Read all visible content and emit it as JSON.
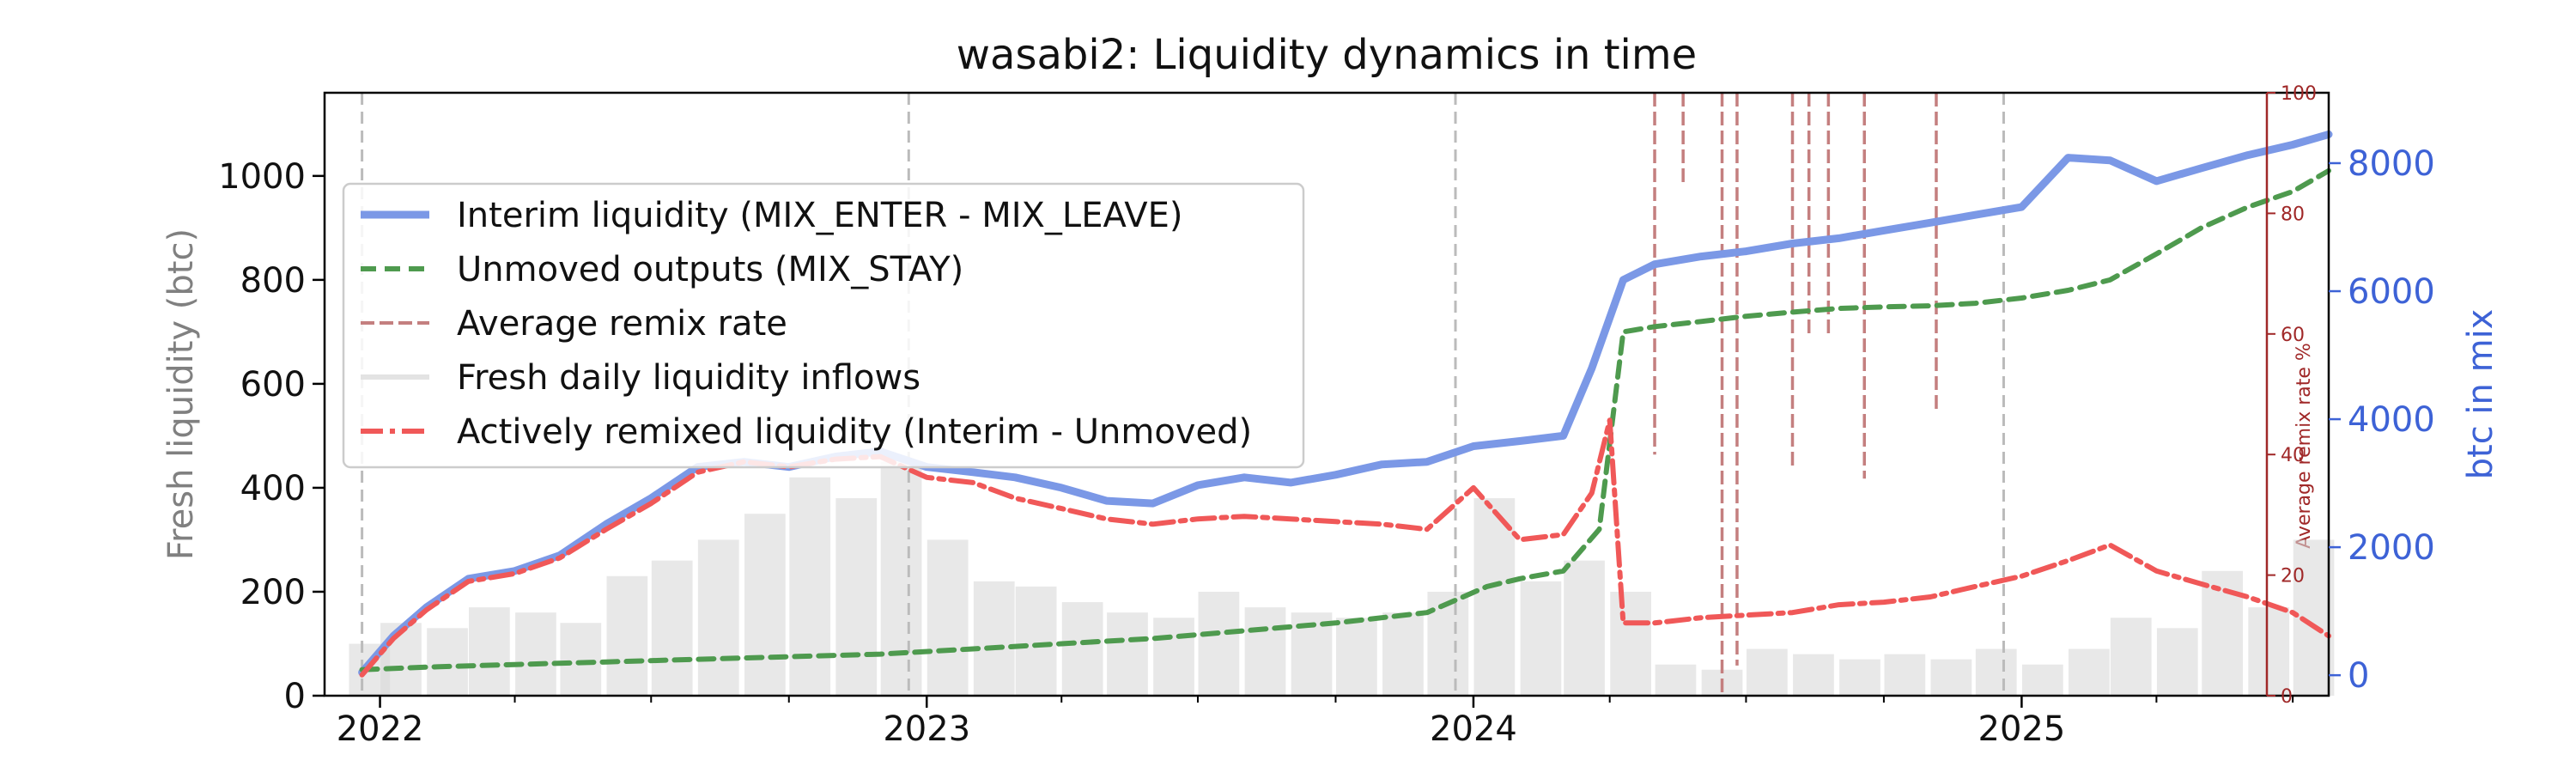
{
  "chart_data": {
    "type": "line",
    "title": "wasabi2: Liquidity dynamics in time",
    "ylabel_left": "Fresh liquidity (btc)",
    "ylabel_right_inner": "Average remix rate %",
    "ylabel_right_outer": "btc in mix",
    "xlim": [
      "2021-11-25",
      "2025-07-25"
    ],
    "ylim_left": [
      0,
      1160
    ],
    "ylim_right_inner": [
      0,
      100
    ],
    "ylim_right_outer": [
      -320,
      9100
    ],
    "x_ticks": [
      {
        "date": "2022-01-01",
        "label": "2022"
      },
      {
        "date": "2023-01-01",
        "label": "2023"
      },
      {
        "date": "2024-01-01",
        "label": "2024"
      },
      {
        "date": "2025-01-01",
        "label": "2025"
      }
    ],
    "x_minor_ticks": [
      "2022-04-01",
      "2022-07-01",
      "2022-10-01",
      "2023-04-01",
      "2023-07-01",
      "2023-10-01",
      "2024-04-01",
      "2024-07-01",
      "2024-10-01",
      "2025-04-01",
      "2025-07-01"
    ],
    "y_ticks_left": [
      0,
      200,
      400,
      600,
      800,
      1000
    ],
    "y_ticks_right_inner": [
      0,
      20,
      40,
      60,
      80,
      100
    ],
    "y_ticks_right_outer": [
      0,
      2000,
      4000,
      6000,
      8000
    ],
    "year_markers": [
      "2021-12-20",
      "2022-12-20",
      "2023-12-20",
      "2024-12-20"
    ],
    "legend": {
      "placement": "upper-left",
      "entries": [
        {
          "label": "Interim liquidity (MIX_ENTER - MIX_LEAVE)",
          "style": "interim"
        },
        {
          "label": "Unmoved outputs (MIX_STAY)",
          "style": "unmoved"
        },
        {
          "label": "Average remix rate",
          "style": "remix"
        },
        {
          "label": "Fresh daily liquidity inflows",
          "style": "fresh"
        },
        {
          "label": "Actively remixed liquidity (Interim - Unmoved)",
          "style": "active"
        }
      ]
    },
    "colors": {
      "interim": "#7b98e6",
      "unmoved": "#4e9a4e",
      "remix": "#c47f7f",
      "fresh": "#d9d9d9",
      "active": "#f05858",
      "right_outer_axis": "#3d62d6",
      "right_inner_axis": "#a02828",
      "left_label": "#808080"
    },
    "series": [
      {
        "name": "Interim liquidity (MIX_ENTER - MIX_LEAVE)",
        "axis": "left",
        "x": [
          "2021-12-20",
          "2022-01-10",
          "2022-02-01",
          "2022-03-01",
          "2022-04-01",
          "2022-05-01",
          "2022-06-01",
          "2022-07-01",
          "2022-08-01",
          "2022-09-01",
          "2022-10-01",
          "2022-11-01",
          "2022-12-01",
          "2023-01-01",
          "2023-02-01",
          "2023-03-01",
          "2023-04-01",
          "2023-05-01",
          "2023-06-01",
          "2023-07-01",
          "2023-08-01",
          "2023-09-01",
          "2023-10-01",
          "2023-11-01",
          "2023-12-01",
          "2024-01-01",
          "2024-02-01",
          "2024-03-01",
          "2024-03-20",
          "2024-04-10",
          "2024-05-01",
          "2024-06-01",
          "2024-07-01",
          "2024-08-01",
          "2024-09-01",
          "2024-10-01",
          "2024-11-01",
          "2024-12-01",
          "2025-01-01",
          "2025-02-01",
          "2025-03-01",
          "2025-04-01",
          "2025-05-01",
          "2025-06-01",
          "2025-07-01",
          "2025-07-25"
        ],
        "y": [
          45,
          115,
          170,
          225,
          240,
          270,
          330,
          380,
          440,
          450,
          440,
          460,
          470,
          440,
          430,
          420,
          400,
          375,
          370,
          405,
          420,
          410,
          425,
          445,
          450,
          480,
          490,
          500,
          630,
          800,
          830,
          845,
          855,
          870,
          880,
          895,
          910,
          925,
          940,
          1035,
          1030,
          990,
          1015,
          1040,
          1060,
          1080
        ]
      },
      {
        "name": "Unmoved outputs (MIX_STAY)",
        "axis": "left",
        "x": [
          "2021-12-20",
          "2022-02-01",
          "2022-04-01",
          "2022-06-01",
          "2022-08-01",
          "2022-10-01",
          "2022-12-01",
          "2023-02-01",
          "2023-04-01",
          "2023-06-01",
          "2023-08-01",
          "2023-10-01",
          "2023-12-01",
          "2024-01-10",
          "2024-02-01",
          "2024-03-01",
          "2024-03-25",
          "2024-04-10",
          "2024-05-01",
          "2024-06-01",
          "2024-07-01",
          "2024-08-01",
          "2024-09-01",
          "2024-10-01",
          "2024-11-01",
          "2024-12-01",
          "2025-01-01",
          "2025-02-01",
          "2025-03-01",
          "2025-04-01",
          "2025-05-01",
          "2025-06-01",
          "2025-07-01",
          "2025-07-25"
        ],
        "y": [
          50,
          55,
          60,
          65,
          70,
          75,
          80,
          90,
          100,
          110,
          125,
          140,
          160,
          210,
          225,
          240,
          320,
          700,
          710,
          720,
          730,
          738,
          745,
          748,
          750,
          755,
          765,
          780,
          800,
          850,
          900,
          940,
          970,
          1010
        ]
      },
      {
        "name": "Actively remixed liquidity (Interim - Unmoved)",
        "axis": "left",
        "x": [
          "2021-12-20",
          "2022-01-10",
          "2022-02-01",
          "2022-03-01",
          "2022-04-01",
          "2022-05-01",
          "2022-06-01",
          "2022-07-01",
          "2022-08-01",
          "2022-09-01",
          "2022-10-01",
          "2022-11-01",
          "2022-12-01",
          "2023-01-01",
          "2023-02-01",
          "2023-03-01",
          "2023-04-01",
          "2023-05-01",
          "2023-06-01",
          "2023-07-01",
          "2023-08-01",
          "2023-09-01",
          "2023-10-01",
          "2023-11-01",
          "2023-12-01",
          "2024-01-01",
          "2024-02-01",
          "2024-03-01",
          "2024-03-20",
          "2024-04-01",
          "2024-04-10",
          "2024-05-01",
          "2024-06-01",
          "2024-07-01",
          "2024-08-01",
          "2024-09-01",
          "2024-10-01",
          "2024-11-01",
          "2024-12-01",
          "2025-01-01",
          "2025-02-01",
          "2025-03-01",
          "2025-04-01",
          "2025-05-01",
          "2025-06-01",
          "2025-07-01",
          "2025-07-25"
        ],
        "y": [
          40,
          110,
          165,
          220,
          235,
          265,
          320,
          370,
          430,
          450,
          440,
          455,
          460,
          420,
          410,
          380,
          360,
          340,
          330,
          340,
          345,
          340,
          335,
          330,
          320,
          400,
          300,
          310,
          390,
          530,
          140,
          140,
          150,
          155,
          160,
          175,
          180,
          190,
          210,
          230,
          260,
          290,
          240,
          215,
          190,
          160,
          115
        ]
      },
      {
        "name": "Average remix rate",
        "axis": "right_inner",
        "spikes": [
          {
            "x": "2024-05-01",
            "bottom": 40,
            "top": 100
          },
          {
            "x": "2024-05-20",
            "bottom": 85,
            "top": 100
          },
          {
            "x": "2024-06-15",
            "bottom": 0,
            "top": 100
          },
          {
            "x": "2024-06-25",
            "bottom": 5,
            "top": 100
          },
          {
            "x": "2024-08-01",
            "bottom": 38,
            "top": 100
          },
          {
            "x": "2024-08-12",
            "bottom": 60,
            "top": 100
          },
          {
            "x": "2024-08-25",
            "bottom": 60,
            "top": 100
          },
          {
            "x": "2024-09-18",
            "bottom": 36,
            "top": 100
          },
          {
            "x": "2024-11-05",
            "bottom": 47,
            "top": 100
          }
        ]
      },
      {
        "name": "Fresh daily liquidity inflows",
        "axis": "left",
        "type": "bar",
        "x": [
          "2021-12-25",
          "2022-01-15",
          "2022-02-15",
          "2022-03-15",
          "2022-04-15",
          "2022-05-15",
          "2022-06-15",
          "2022-07-15",
          "2022-08-15",
          "2022-09-15",
          "2022-10-15",
          "2022-11-15",
          "2022-12-15",
          "2023-01-15",
          "2023-02-15",
          "2023-03-15",
          "2023-04-15",
          "2023-05-15",
          "2023-06-15",
          "2023-07-15",
          "2023-08-15",
          "2023-09-15",
          "2023-10-15",
          "2023-11-15",
          "2023-12-15",
          "2024-01-15",
          "2024-02-15",
          "2024-03-15",
          "2024-04-15",
          "2024-05-15",
          "2024-06-15",
          "2024-07-15",
          "2024-08-15",
          "2024-09-15",
          "2024-10-15",
          "2024-11-15",
          "2024-12-15",
          "2025-01-15",
          "2025-02-15",
          "2025-03-15",
          "2025-04-15",
          "2025-05-15",
          "2025-06-15",
          "2025-07-15"
        ],
        "y": [
          100,
          140,
          130,
          170,
          160,
          140,
          230,
          260,
          300,
          350,
          420,
          380,
          450,
          300,
          220,
          210,
          180,
          160,
          150,
          200,
          170,
          160,
          150,
          160,
          200,
          380,
          220,
          260,
          200,
          60,
          50,
          90,
          80,
          70,
          80,
          70,
          90,
          60,
          90,
          150,
          130,
          240,
          170,
          300
        ]
      }
    ]
  }
}
